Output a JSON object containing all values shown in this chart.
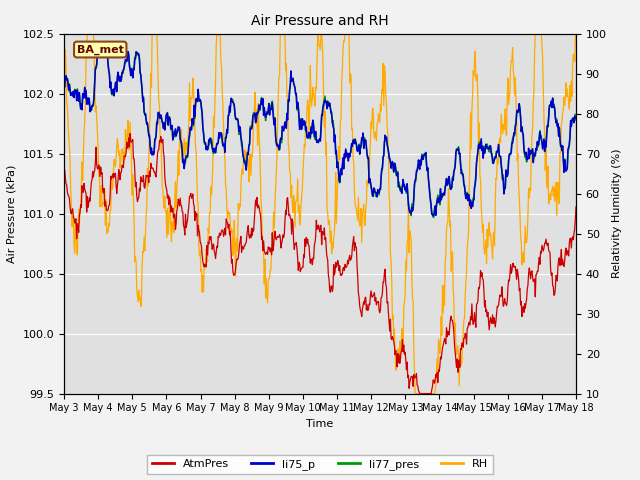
{
  "title": "Air Pressure and RH",
  "xlabel": "Time",
  "ylabel_left": "Air Pressure (kPa)",
  "ylabel_right": "Relativity Humidity (%)",
  "ylim_left": [
    99.5,
    102.5
  ],
  "ylim_right": [
    10,
    100
  ],
  "yticks_left": [
    99.5,
    100.0,
    100.5,
    101.0,
    101.5,
    102.0,
    102.5
  ],
  "yticks_right": [
    10,
    20,
    30,
    40,
    50,
    60,
    70,
    80,
    90,
    100
  ],
  "xtick_labels": [
    "May 3",
    "May 4",
    "May 5",
    "May 6",
    "May 7",
    "May 8",
    "May 9",
    "May 10",
    "May 11",
    "May 12",
    "May 13",
    "May 14",
    "May 15",
    "May 16",
    "May 17",
    "May 18"
  ],
  "colors": {
    "AtmPres": "#cc0000",
    "li75_p": "#0000cc",
    "li77_pres": "#009900",
    "RH": "#ffaa00"
  },
  "legend_label": "BA_met",
  "bg_color": "#e0e0e0",
  "grid_color": "#ffffff",
  "fig_bg": "#f2f2f2"
}
